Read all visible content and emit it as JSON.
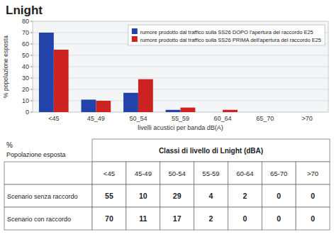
{
  "chart_data": [
    {
      "type": "bar",
      "title": "Lnight",
      "categories": [
        "<45",
        "45_49",
        "50_54",
        "55_59",
        "60_64",
        "65_70",
        ">70"
      ],
      "series": [
        {
          "name": "rumore prodotto dal traffico sulla SS26 DOPO l'apertura del raccordo E25",
          "color": "#2244aa",
          "values": [
            70,
            11,
            17,
            2,
            0,
            0,
            0
          ]
        },
        {
          "name": "rumore prodotto dal traffico sulla SS26 PRIMA dell'apertura del raccordo E25",
          "color": "#cc2222",
          "values": [
            55,
            10,
            29,
            4,
            2,
            0,
            0
          ]
        }
      ],
      "xlabel": "livelli acustici per banda dB(A)",
      "ylabel": "% popolazione esposta",
      "ylim": [
        0,
        80
      ],
      "yticks": [
        0,
        10,
        20,
        30,
        40,
        50,
        60,
        70,
        80
      ],
      "grid": true,
      "legend": "upper right"
    },
    {
      "type": "table",
      "title": "Classi di livello di Lnight (dBA)",
      "annotations": [
        "%",
        "Popolazione esposta"
      ],
      "categories": [
        "<45",
        "45-49",
        "50-54",
        "55-59",
        "60-64",
        "65-70",
        ">70"
      ],
      "series": [
        {
          "name": "Scenario senza raccordo",
          "values": [
            55,
            10,
            29,
            4,
            2,
            0,
            0
          ]
        },
        {
          "name": "Scenario con raccordo",
          "values": [
            70,
            11,
            17,
            2,
            0,
            0,
            0
          ]
        }
      ]
    }
  ]
}
